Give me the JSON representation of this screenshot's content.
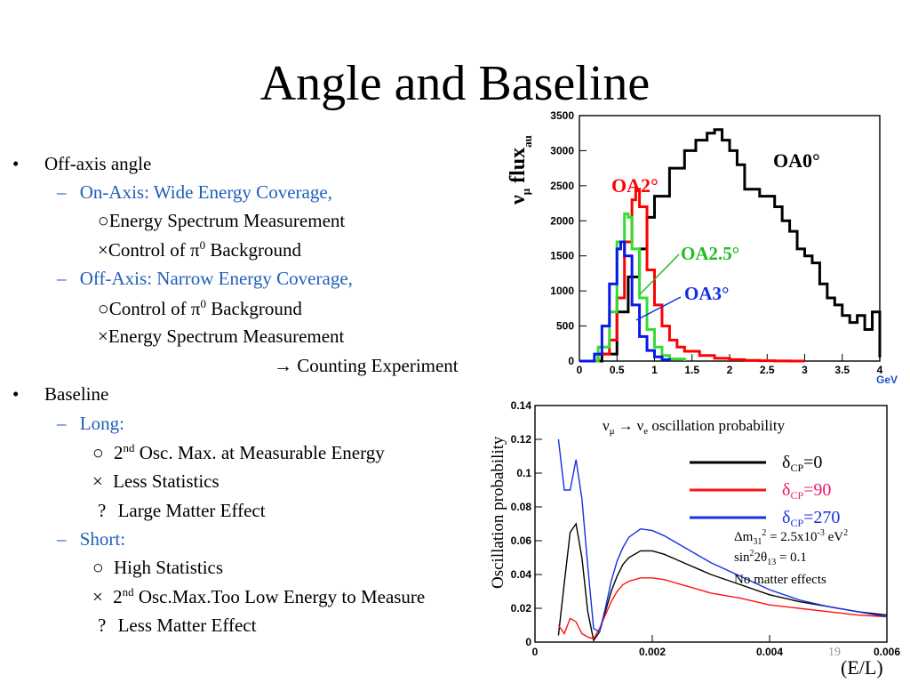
{
  "slide": {
    "title": "Angle and Baseline",
    "page_number": "19"
  },
  "bullets": {
    "l1": {
      "bullet": "•",
      "text": "Off-axis angle"
    },
    "l2": {
      "dash": "–",
      "text": "On-Axis: Wide Energy Coverage,"
    },
    "l3": {
      "mark": "○",
      "text": "Energy Spectrum Measurement"
    },
    "l4": {
      "mark": "×",
      "pre": "Control of π",
      "sup": "0",
      "post": " Background"
    },
    "l5": {
      "dash": "–",
      "text": "Off-Axis: Narrow Energy Coverage,"
    },
    "l6": {
      "mark": "○",
      "pre": "Control of π",
      "sup": "0",
      "post": " Background"
    },
    "l7": {
      "mark": "×",
      "text": "Energy Spectrum Measurement"
    },
    "l8": {
      "text": "→ Counting Experiment"
    },
    "l9": {
      "bullet": "•",
      "text": "Baseline"
    },
    "l10": {
      "dash": "–",
      "text": "Long:"
    },
    "l11": {
      "mark": "○",
      "pre": "2",
      "sup": "nd",
      "post": " Osc. Max. at Measurable Energy"
    },
    "l12": {
      "mark": "×",
      "text": "Less Statistics"
    },
    "l13": {
      "mark": "?",
      "text": "Large Matter Effect"
    },
    "l14": {
      "dash": "–",
      "text": "Short:"
    },
    "l15": {
      "mark": "○",
      "text": "High Statistics"
    },
    "l16": {
      "mark": "×",
      "pre": "2",
      "sup": "nd",
      "post": " Osc.Max.Too Low Energy to Measure"
    },
    "l17": {
      "mark": "?",
      "text": "Less Matter Effect"
    }
  },
  "colors": {
    "bullet_blue": "#1f5fb8",
    "oa0": "#000000",
    "oa2": "#ff0000",
    "oa25": "#33dd33",
    "oa3": "#0a18e6",
    "cp0": "#000000",
    "cp90": "#ff1111",
    "cp270": "#1530e0",
    "cp90_label": "#e8186b",
    "cp270_label": "#1530e0"
  },
  "chart_data": [
    {
      "type": "line",
      "ylabel_main": "ν",
      "ylabel_mu": "μ",
      "ylabel_flux": " flux",
      "ylabel_au": "au",
      "xunit": "GeV",
      "xlim": [
        0,
        4
      ],
      "ylim": [
        0,
        3500
      ],
      "xticks": [
        "0",
        "0.5",
        "1",
        "1.5",
        "2",
        "2.5",
        "3",
        "3.5",
        "4"
      ],
      "yticks": [
        "0",
        "500",
        "1000",
        "1500",
        "2000",
        "2500",
        "3000",
        "3500"
      ],
      "labels": {
        "oa0": "OA0°",
        "oa2": "OA2°",
        "oa25": "OA2.5°",
        "oa3": "OA3°"
      },
      "series": [
        {
          "name": "OA0°",
          "x": [
            0,
            0.3,
            0.5,
            0.65,
            0.8,
            0.9,
            1.0,
            1.2,
            1.4,
            1.55,
            1.7,
            1.8,
            1.9,
            2.0,
            2.1,
            2.2,
            2.3,
            2.4,
            2.5,
            2.6,
            2.7,
            2.8,
            2.9,
            3.0,
            3.1,
            3.2,
            3.3,
            3.4,
            3.5,
            3.6,
            3.7,
            3.8,
            3.9,
            4.0
          ],
          "y": [
            0,
            100,
            700,
            1200,
            1600,
            2050,
            2350,
            2750,
            3000,
            3150,
            3250,
            3300,
            3150,
            3000,
            2800,
            2450,
            2450,
            2350,
            2350,
            2200,
            2000,
            1850,
            1600,
            1500,
            1400,
            1100,
            900,
            800,
            650,
            550,
            650,
            450,
            700,
            50
          ]
        },
        {
          "name": "OA2°",
          "x": [
            0,
            0.25,
            0.4,
            0.5,
            0.6,
            0.7,
            0.75,
            0.8,
            0.9,
            1.0,
            1.1,
            1.2,
            1.3,
            1.4,
            1.6,
            1.8,
            2.0,
            2.2,
            2.4,
            2.6,
            2.8,
            3.0
          ],
          "y": [
            0,
            100,
            300,
            900,
            1700,
            2300,
            2450,
            2200,
            1300,
            800,
            500,
            300,
            200,
            140,
            80,
            40,
            20,
            10,
            5,
            2,
            0,
            0
          ]
        },
        {
          "name": "OA2.5°",
          "x": [
            0,
            0.25,
            0.4,
            0.5,
            0.6,
            0.65,
            0.7,
            0.8,
            0.9,
            1.0,
            1.1,
            1.2,
            1.4
          ],
          "y": [
            0,
            200,
            700,
            1700,
            2100,
            2050,
            1600,
            900,
            450,
            200,
            80,
            30,
            0
          ]
        },
        {
          "name": "OA3°",
          "x": [
            0,
            0.2,
            0.3,
            0.4,
            0.5,
            0.55,
            0.6,
            0.7,
            0.8,
            0.9,
            1.0,
            1.1,
            1.2
          ],
          "y": [
            0,
            100,
            500,
            1100,
            1600,
            1700,
            1500,
            800,
            350,
            150,
            60,
            20,
            0
          ]
        }
      ]
    },
    {
      "type": "line",
      "title_nu1": "ν",
      "title_sub1": "μ",
      "title_arrow": "→",
      "title_nu2": "ν",
      "title_sub2": "e",
      "title_rest": " oscillation probability",
      "ylabel": "Oscillation probability",
      "xlabel": "(E/L)",
      "xlim": [
        0,
        0.006
      ],
      "ylim": [
        0,
        0.14
      ],
      "xticks": [
        "0",
        "0.002",
        "0.004",
        "0.006"
      ],
      "yticks": [
        "0",
        "0.02",
        "0.04",
        "0.06",
        "0.08",
        "0.1",
        "0.12",
        "0.14"
      ],
      "legend": [
        {
          "key": "cp0",
          "delta": "δ",
          "sub": "CP",
          "val": "=0"
        },
        {
          "key": "cp90",
          "delta": "δ",
          "sub": "CP",
          "val": "=90"
        },
        {
          "key": "cp270",
          "delta": "δ",
          "sub": "CP",
          "val": "=270"
        }
      ],
      "annotations": {
        "dm_pre": "Δm",
        "dm_sub": "31",
        "dm_sup": "2",
        "dm_mid": " = 2.5x10",
        "dm_exp": "-3",
        "dm_unit": " eV",
        "dm_unit_sup": "2",
        "s_pre": "sin",
        "s_sup": "2",
        "s_mid": "2θ",
        "s_sub": "13",
        "s_post": " = 0.1",
        "matter": "No matter effects"
      },
      "series": [
        {
          "name": "δCP=0",
          "x": [
            0.0004,
            0.0005,
            0.0006,
            0.0007,
            0.0008,
            0.0009,
            0.001,
            0.0011,
            0.0012,
            0.0013,
            0.0014,
            0.0015,
            0.0016,
            0.0018,
            0.002,
            0.0022,
            0.0024,
            0.0026,
            0.0028,
            0.003,
            0.0035,
            0.004,
            0.0045,
            0.005,
            0.0055,
            0.006
          ],
          "y": [
            0.004,
            0.035,
            0.065,
            0.07,
            0.05,
            0.018,
            0.001,
            0.006,
            0.018,
            0.03,
            0.039,
            0.046,
            0.05,
            0.054,
            0.054,
            0.052,
            0.049,
            0.046,
            0.043,
            0.04,
            0.034,
            0.028,
            0.024,
            0.021,
            0.018,
            0.016
          ]
        },
        {
          "name": "δCP=90",
          "x": [
            0.0004,
            0.0005,
            0.0006,
            0.0007,
            0.0008,
            0.0009,
            0.001,
            0.0011,
            0.0012,
            0.0013,
            0.0014,
            0.0015,
            0.0016,
            0.0018,
            0.002,
            0.0022,
            0.0024,
            0.0026,
            0.0028,
            0.003,
            0.0035,
            0.004,
            0.0045,
            0.005,
            0.0055,
            0.006
          ],
          "y": [
            0.01,
            0.005,
            0.014,
            0.012,
            0.005,
            0.003,
            0.002,
            0.008,
            0.016,
            0.024,
            0.03,
            0.034,
            0.036,
            0.038,
            0.038,
            0.037,
            0.035,
            0.033,
            0.031,
            0.029,
            0.026,
            0.022,
            0.02,
            0.018,
            0.016,
            0.015
          ]
        },
        {
          "name": "δCP=270",
          "x": [
            0.0004,
            0.0005,
            0.0006,
            0.0007,
            0.0008,
            0.0009,
            0.001,
            0.0011,
            0.0012,
            0.0013,
            0.0014,
            0.0015,
            0.0016,
            0.0018,
            0.002,
            0.0022,
            0.0024,
            0.0026,
            0.0028,
            0.003,
            0.0035,
            0.004,
            0.0045,
            0.005,
            0.0055,
            0.006
          ],
          "y": [
            0.12,
            0.09,
            0.09,
            0.108,
            0.085,
            0.045,
            0.008,
            0.006,
            0.02,
            0.036,
            0.048,
            0.056,
            0.062,
            0.067,
            0.066,
            0.063,
            0.059,
            0.055,
            0.051,
            0.047,
            0.039,
            0.031,
            0.025,
            0.021,
            0.018,
            0.015
          ]
        }
      ]
    }
  ]
}
